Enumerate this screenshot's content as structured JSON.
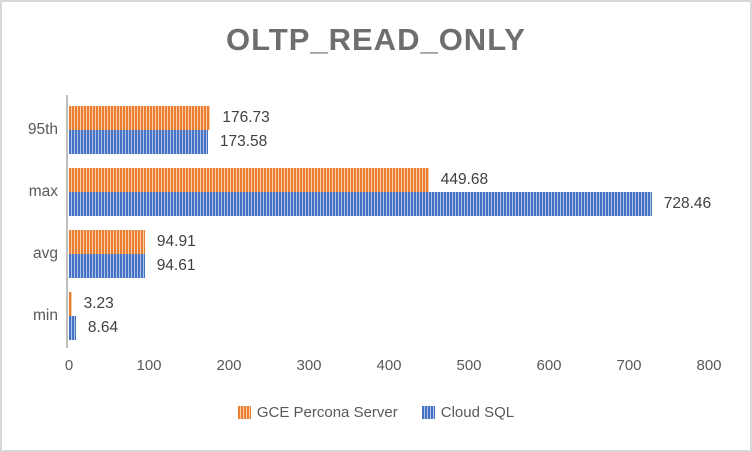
{
  "chart_data": {
    "type": "bar",
    "orientation": "horizontal",
    "title": "OLTP_READ_ONLY",
    "categories": [
      "95th",
      "max",
      "avg",
      "min"
    ],
    "series": [
      {
        "name": "GCE Percona Server",
        "color": "#ED7D31",
        "stripe_color": "#F7CEAC",
        "values": [
          176.73,
          449.68,
          94.91,
          3.23
        ],
        "data_labels": [
          "176.73",
          "449.68",
          "94.91",
          "3.23"
        ]
      },
      {
        "name": "Cloud SQL",
        "color": "#4472C4",
        "stripe_color": "#B3C3E8",
        "values": [
          173.58,
          728.46,
          94.61,
          8.64
        ],
        "data_labels": [
          "173.58",
          "728.46",
          "94.61",
          "8.64"
        ]
      }
    ],
    "xlim": [
      0,
      800
    ],
    "xticks": [
      0,
      100,
      200,
      300,
      400,
      500,
      600,
      700,
      800
    ],
    "grid": false,
    "legend_position": "bottom",
    "pattern_fill": "vertical-stripes",
    "text_colors": {
      "title": "#6e6e6e",
      "axis": "#595959",
      "data_label": "#404040"
    },
    "axis_line_color": "#bfbfbf"
  }
}
